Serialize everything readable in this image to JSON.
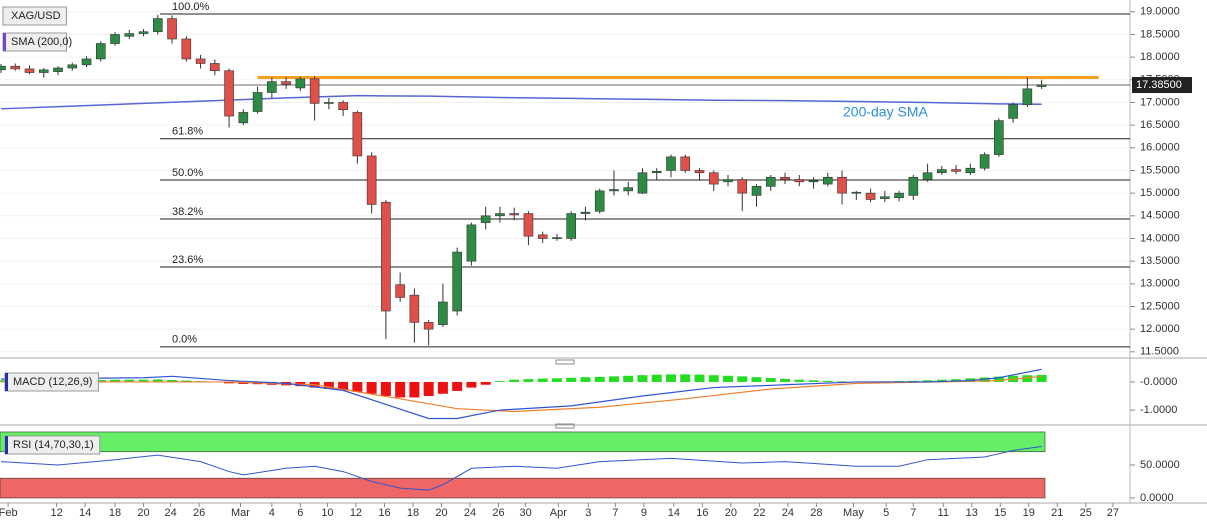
{
  "chart_data": [
    {
      "type": "candlestick",
      "title": "XAG/USD",
      "xlim": [
        0,
        79.2
      ],
      "ylim": [
        11.43,
        19.26
      ],
      "yticks": [
        {
          "value": 11.5,
          "label": "11.5000"
        },
        {
          "value": 12,
          "label": "12.0000"
        },
        {
          "value": 12.5,
          "label": "12.5000"
        },
        {
          "value": 13,
          "label": "13.0000"
        },
        {
          "value": 13.5,
          "label": "13.5000"
        },
        {
          "value": 14,
          "label": "14.0000"
        },
        {
          "value": 14.5,
          "label": "14.5000"
        },
        {
          "value": 15,
          "label": "15.0000"
        },
        {
          "value": 15.5,
          "label": "15.5000"
        },
        {
          "value": 16,
          "label": "16.0000"
        },
        {
          "value": 16.5,
          "label": "16.5000"
        },
        {
          "value": 17,
          "label": "17.0000"
        },
        {
          "value": 17.5,
          "label": "17.5000"
        },
        {
          "value": 18,
          "label": "18.0000"
        },
        {
          "value": 18.5,
          "label": "18.5000"
        },
        {
          "value": 19,
          "label": "19.0000"
        }
      ],
      "grid": true,
      "up_color": "#2e8b46",
      "down_color": "#e0504b",
      "open": [
        17.72,
        17.8,
        17.74,
        17.66,
        17.68,
        17.76,
        17.83,
        17.96,
        18.3,
        18.46,
        18.52,
        18.56,
        18.85,
        18.4,
        17.96,
        17.86,
        17.7,
        16.55,
        16.8,
        17.22,
        17.46,
        17.32,
        17.52,
        16.98,
        17.0,
        16.78,
        15.82,
        14.8,
        12.98,
        12.75,
        12.15,
        12.1,
        12.4,
        13.5,
        14.35,
        14.5,
        14.55,
        14.55,
        14.08,
        14.0,
        14.0,
        14.55,
        14.6,
        15.05,
        15.05,
        15.0,
        15.45,
        15.5,
        15.8,
        15.5,
        15.45,
        15.25,
        15.3,
        14.95,
        15.15,
        15.35,
        15.3,
        15.25,
        15.2,
        15.35,
        15.0,
        15.0,
        14.88,
        14.9,
        14.95,
        15.3,
        15.45,
        15.52,
        15.45,
        15.55,
        15.85,
        16.65,
        16.95,
        17.35
      ],
      "high": [
        17.85,
        17.86,
        17.82,
        17.76,
        17.8,
        17.88,
        18.02,
        18.35,
        18.55,
        18.6,
        18.62,
        18.93,
        18.92,
        18.46,
        18.05,
        17.95,
        17.75,
        16.85,
        17.35,
        17.55,
        17.56,
        17.57,
        17.58,
        17.1,
        17.05,
        16.82,
        15.9,
        14.85,
        13.25,
        12.9,
        12.2,
        13.0,
        13.8,
        14.35,
        14.7,
        14.7,
        14.68,
        14.6,
        14.15,
        14.1,
        14.6,
        14.7,
        15.1,
        15.5,
        15.25,
        15.55,
        15.55,
        15.85,
        15.85,
        15.55,
        15.5,
        15.4,
        15.35,
        15.2,
        15.4,
        15.45,
        15.4,
        15.35,
        15.45,
        15.5,
        15.05,
        15.1,
        15.05,
        15.05,
        15.4,
        15.65,
        15.6,
        15.62,
        15.65,
        15.9,
        16.65,
        17.0,
        17.55,
        17.5
      ],
      "low": [
        17.65,
        17.7,
        17.62,
        17.55,
        17.6,
        17.7,
        17.78,
        17.9,
        18.25,
        18.4,
        18.46,
        18.5,
        18.3,
        17.9,
        17.75,
        17.6,
        16.45,
        16.5,
        16.75,
        17.1,
        17.3,
        17.25,
        16.6,
        16.85,
        16.7,
        15.65,
        14.55,
        11.78,
        12.6,
        11.7,
        11.64,
        12.05,
        12.3,
        13.4,
        14.2,
        14.35,
        14.4,
        13.85,
        13.9,
        13.95,
        13.95,
        14.4,
        14.55,
        14.95,
        14.95,
        14.98,
        15.3,
        15.35,
        15.45,
        15.3,
        15.05,
        15.15,
        14.6,
        14.7,
        15.05,
        15.2,
        15.15,
        15.1,
        15.15,
        14.75,
        14.85,
        14.8,
        14.8,
        14.82,
        14.85,
        15.25,
        15.4,
        15.42,
        15.4,
        15.5,
        15.8,
        16.55,
        16.9,
        17.3
      ],
      "close": [
        17.8,
        17.74,
        17.66,
        17.72,
        17.76,
        17.83,
        17.96,
        18.3,
        18.5,
        18.52,
        18.56,
        18.85,
        18.4,
        17.96,
        17.86,
        17.7,
        16.7,
        16.78,
        17.22,
        17.46,
        17.4,
        17.52,
        16.98,
        17.0,
        16.84,
        15.82,
        14.75,
        12.4,
        12.7,
        12.15,
        12.0,
        12.6,
        13.7,
        14.3,
        14.5,
        14.55,
        14.52,
        14.05,
        14.0,
        14.02,
        14.55,
        14.58,
        15.05,
        15.08,
        15.12,
        15.45,
        15.48,
        15.8,
        15.5,
        15.45,
        15.2,
        15.3,
        15.0,
        15.15,
        15.35,
        15.3,
        15.25,
        15.28,
        15.35,
        15.0,
        15.02,
        14.86,
        14.92,
        15.0,
        15.35,
        15.45,
        15.52,
        15.48,
        15.55,
        15.85,
        16.6,
        16.95,
        17.3,
        17.39
      ],
      "sma": {
        "name": "SMA (200,0)",
        "label": "200-day SMA",
        "color": "#5566d6",
        "label_color": "#2a8fd6",
        "x": [
          0,
          5,
          10,
          15,
          20,
          25,
          30,
          35,
          40,
          45,
          50,
          55,
          60,
          65,
          70,
          73
        ],
        "values": [
          16.86,
          16.92,
          16.98,
          17.04,
          17.1,
          17.15,
          17.14,
          17.11,
          17.09,
          17.07,
          17.05,
          17.04,
          17.02,
          17.0,
          16.97,
          16.96
        ]
      },
      "resistance": {
        "value": 17.55,
        "x": [
          18,
          77
        ],
        "color": "#f5a020"
      },
      "fib_levels": [
        {
          "label": "100.0%",
          "value": 18.95
        },
        {
          "label": "61.8%",
          "value": 16.2
        },
        {
          "label": "50.0%",
          "value": 15.29
        },
        {
          "label": "38.2%",
          "value": 14.43
        },
        {
          "label": "23.6%",
          "value": 13.37
        },
        {
          "label": "0.0%",
          "value": 11.61
        }
      ],
      "last_price": {
        "value": 17.385,
        "label": "17.38500"
      }
    },
    {
      "type": "macd",
      "title": "MACD (12,26,9)",
      "ylim": [
        -1.46,
        0.71
      ],
      "yticks": [
        {
          "value": 0,
          "label": "-0.0000"
        },
        {
          "value": -1,
          "label": "-1.0000"
        }
      ],
      "macd": {
        "color": "#2f55d4",
        "x": [
          0,
          10,
          12,
          16,
          20,
          24,
          27,
          30,
          32,
          35,
          40,
          45,
          50,
          55,
          60,
          65,
          68,
          70,
          73
        ],
        "values": [
          0.1,
          0.15,
          0.2,
          0.05,
          -0.05,
          -0.3,
          -0.8,
          -1.3,
          -1.3,
          -1.0,
          -0.85,
          -0.5,
          -0.2,
          -0.1,
          0.0,
          0.0,
          0.05,
          0.15,
          0.45
        ]
      },
      "signal": {
        "color": "#f08030",
        "x": [
          0,
          16,
          22,
          28,
          32,
          36,
          42,
          48,
          54,
          60,
          66,
          70,
          73
        ],
        "values": [
          0.0,
          0.0,
          -0.1,
          -0.6,
          -0.95,
          -1.05,
          -0.9,
          -0.6,
          -0.25,
          -0.05,
          0.0,
          0.05,
          0.2
        ]
      },
      "histogram": {
        "up_color": "#22dd22",
        "down_color": "#ee1111",
        "values": [
          0.06,
          0.06,
          0.05,
          0.05,
          0.05,
          0.06,
          0.06,
          0.07,
          0.08,
          0.08,
          0.08,
          0.09,
          0.07,
          0.05,
          0.03,
          0.01,
          -0.05,
          -0.07,
          -0.08,
          -0.1,
          -0.12,
          -0.15,
          -0.2,
          -0.25,
          -0.3,
          -0.35,
          -0.42,
          -0.5,
          -0.55,
          -0.55,
          -0.5,
          -0.42,
          -0.32,
          -0.2,
          -0.1,
          0.03,
          0.08,
          0.1,
          0.12,
          0.13,
          0.15,
          0.17,
          0.18,
          0.2,
          0.22,
          0.24,
          0.26,
          0.27,
          0.27,
          0.26,
          0.24,
          0.22,
          0.2,
          0.17,
          0.14,
          0.11,
          0.08,
          0.06,
          0.04,
          0.02,
          0.01,
          0.01,
          0.02,
          0.03,
          0.04,
          0.06,
          0.08,
          0.1,
          0.13,
          0.16,
          0.19,
          0.22,
          0.24,
          0.25
        ]
      }
    },
    {
      "type": "rsi",
      "title": "RSI (14,70,30,1)",
      "ylim": [
        -7.6,
        106
      ],
      "yticks": [
        {
          "value": 50,
          "label": "50.0000"
        },
        {
          "value": 0,
          "label": "0.0000"
        }
      ],
      "zones": [
        {
          "from": 70,
          "to": 100,
          "color": "#66ee66"
        },
        {
          "from": 0,
          "to": 30,
          "color": "#ee6666"
        }
      ],
      "rsi": {
        "color": "#3355cc",
        "x": [
          0,
          4,
          8,
          11,
          14,
          16,
          17,
          20,
          22,
          24,
          26,
          28,
          30,
          31,
          33,
          36,
          39,
          42,
          47,
          52,
          55,
          60,
          63,
          65,
          69,
          71,
          73
        ],
        "values": [
          55,
          50,
          58,
          65,
          55,
          40,
          35,
          45,
          48,
          40,
          25,
          15,
          12,
          20,
          45,
          48,
          45,
          55,
          60,
          53,
          55,
          48,
          48,
          58,
          62,
          72,
          78
        ]
      },
      "xticks": [
        {
          "value": 0.5,
          "label": "Feb"
        },
        {
          "value": 3.9,
          "label": "12"
        },
        {
          "value": 5.9,
          "label": "14"
        },
        {
          "value": 8.0,
          "label": "18"
        },
        {
          "value": 10.0,
          "label": "20"
        },
        {
          "value": 11.9,
          "label": "24"
        },
        {
          "value": 13.9,
          "label": "26"
        },
        {
          "value": 16.8,
          "label": "Mar"
        },
        {
          "value": 19.0,
          "label": "4"
        },
        {
          "value": 21.0,
          "label": "6"
        },
        {
          "value": 22.9,
          "label": "10"
        },
        {
          "value": 24.9,
          "label": "12"
        },
        {
          "value": 26.9,
          "label": "16"
        },
        {
          "value": 28.9,
          "label": "18"
        },
        {
          "value": 30.9,
          "label": "20"
        },
        {
          "value": 32.9,
          "label": "24"
        },
        {
          "value": 34.9,
          "label": "26"
        },
        {
          "value": 36.8,
          "label": "30"
        },
        {
          "value": 39.1,
          "label": "Apr"
        },
        {
          "value": 41.2,
          "label": "3"
        },
        {
          "value": 43.1,
          "label": "7"
        },
        {
          "value": 45.1,
          "label": "9"
        },
        {
          "value": 47.2,
          "label": "14"
        },
        {
          "value": 49.2,
          "label": "16"
        },
        {
          "value": 51.2,
          "label": "20"
        },
        {
          "value": 53.2,
          "label": "22"
        },
        {
          "value": 55.2,
          "label": "24"
        },
        {
          "value": 57.2,
          "label": "28"
        },
        {
          "value": 59.8,
          "label": "May"
        },
        {
          "value": 62.1,
          "label": "5"
        },
        {
          "value": 64.0,
          "label": "7"
        },
        {
          "value": 66.1,
          "label": "11"
        },
        {
          "value": 68.1,
          "label": "13"
        },
        {
          "value": 70.1,
          "label": "15"
        },
        {
          "value": 72.1,
          "label": "19"
        },
        {
          "value": 74.1,
          "label": "21"
        },
        {
          "value": 76.1,
          "label": "25"
        },
        {
          "value": 78.0,
          "label": "27"
        }
      ]
    }
  ]
}
